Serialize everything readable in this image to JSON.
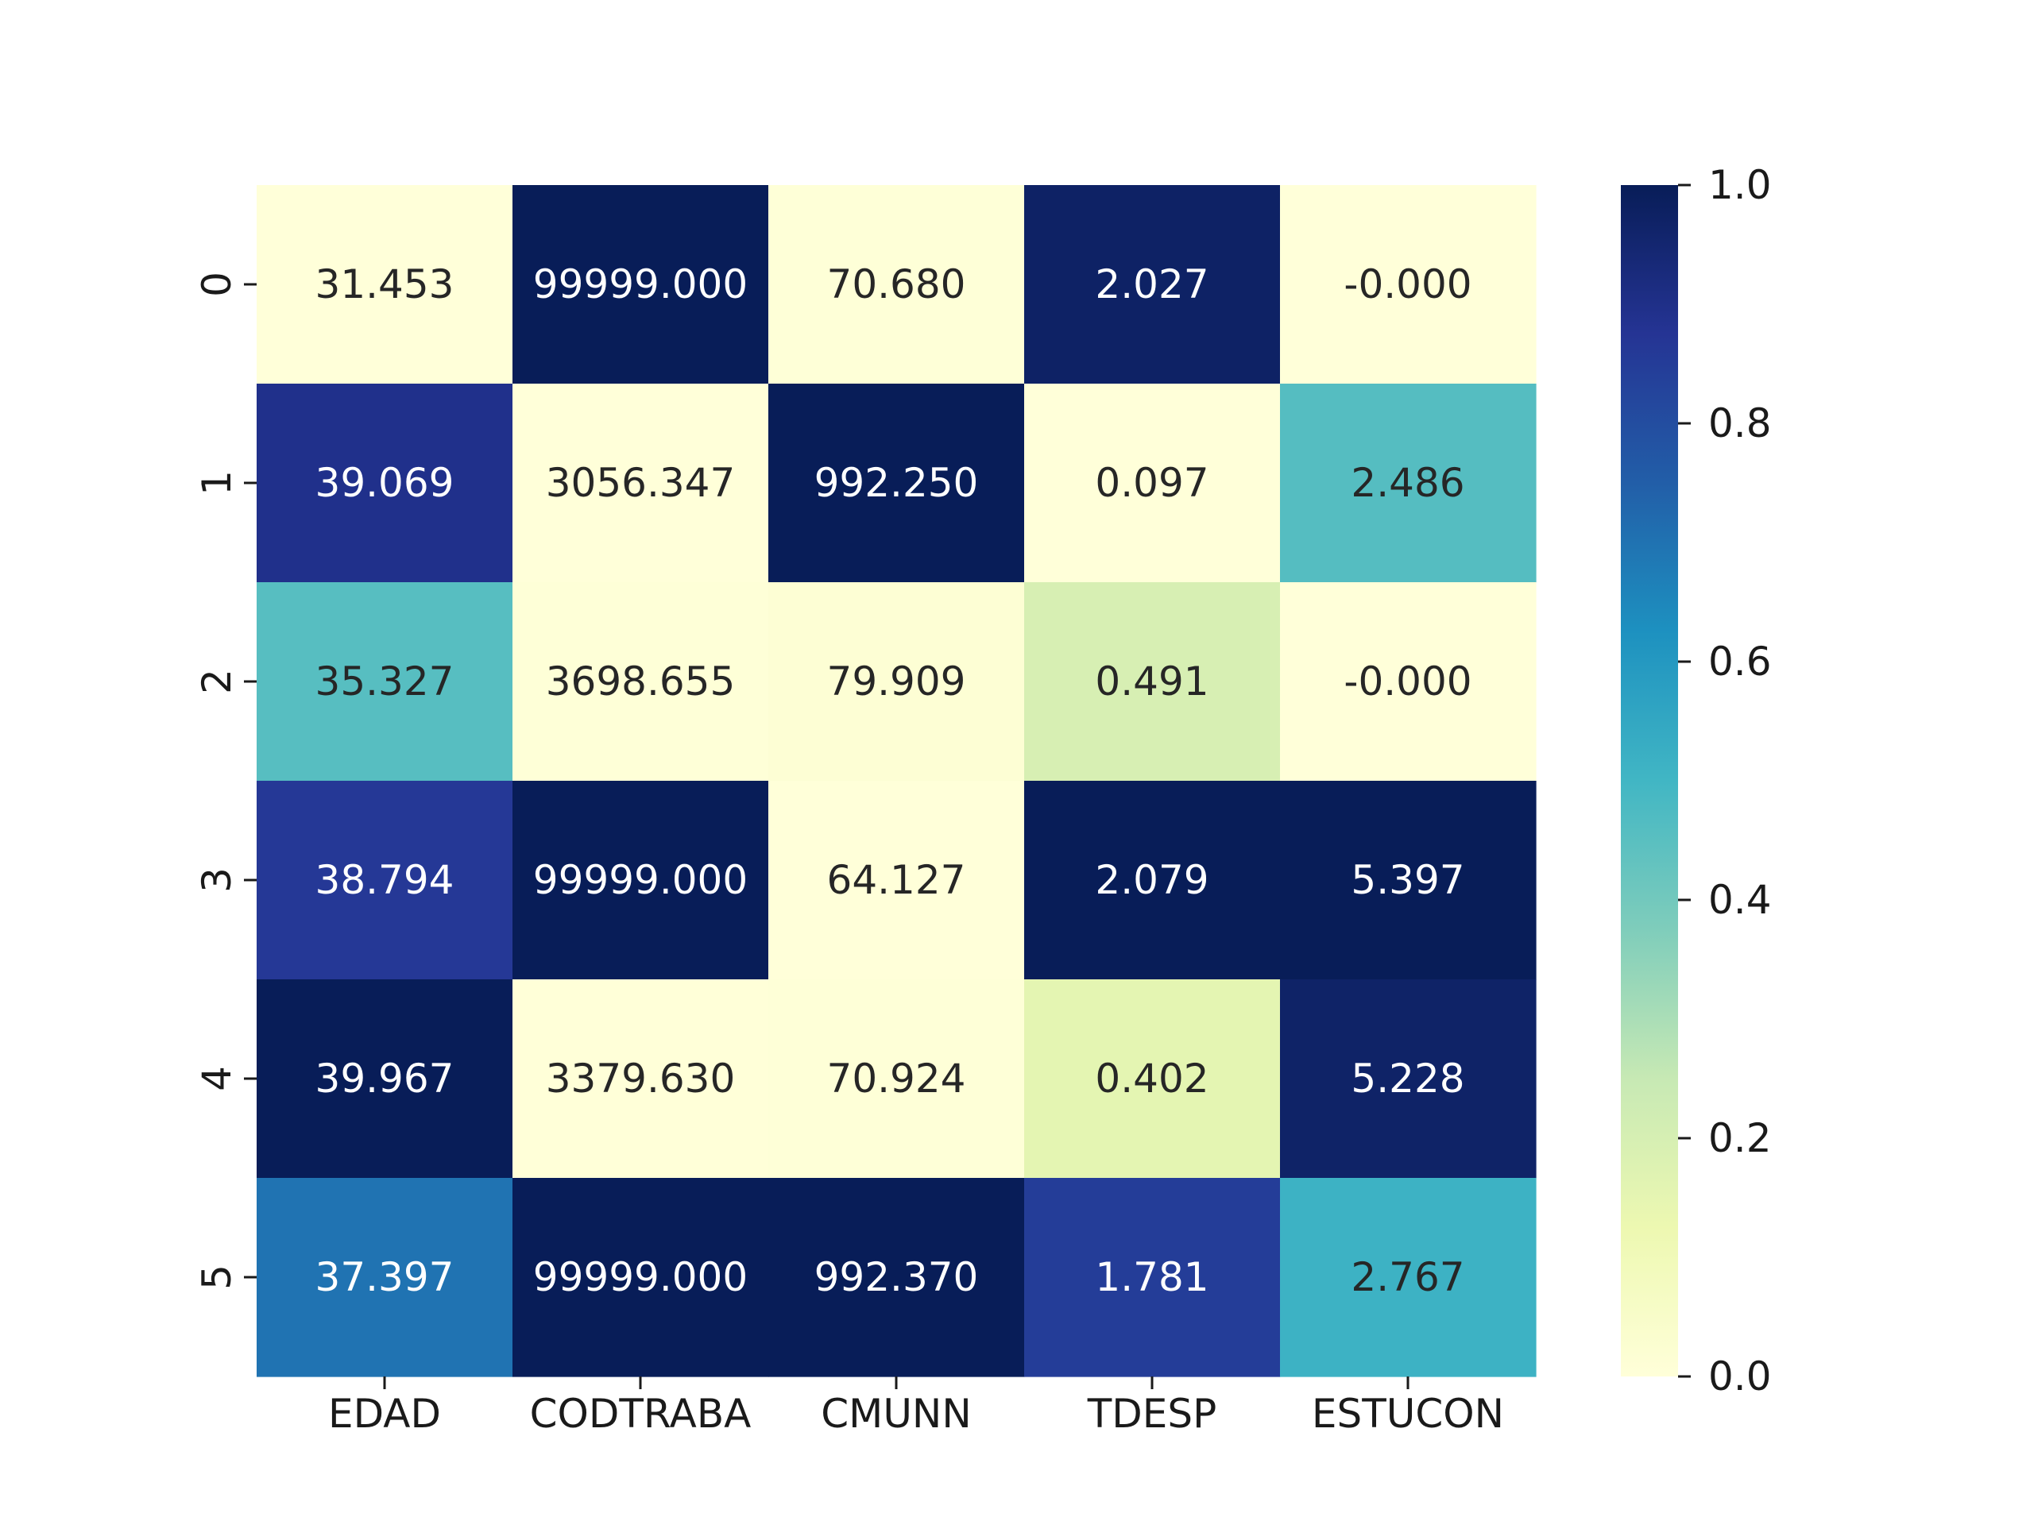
{
  "chart_data": {
    "type": "heatmap",
    "title": "",
    "xlabel": "",
    "ylabel": "",
    "columns": [
      "EDAD",
      "CODTRABA",
      "CMUNN",
      "TDESP",
      "ESTUCON"
    ],
    "rows": [
      "0",
      "1",
      "2",
      "3",
      "4",
      "5"
    ],
    "values": [
      [
        31.453,
        99999.0,
        70.68,
        2.027,
        -0.0
      ],
      [
        39.069,
        3056.347,
        992.25,
        0.097,
        2.486
      ],
      [
        35.327,
        3698.655,
        79.909,
        0.491,
        -0.0
      ],
      [
        38.794,
        99999.0,
        64.127,
        2.079,
        5.397
      ],
      [
        39.967,
        3379.63,
        70.924,
        0.402,
        5.228
      ],
      [
        37.397,
        99999.0,
        992.37,
        1.781,
        2.767
      ]
    ],
    "labels": [
      [
        "31.453",
        "99999.000",
        "70.680",
        "2.027",
        "-0.000"
      ],
      [
        "39.069",
        "3056.347",
        "992.250",
        "0.097",
        "2.486"
      ],
      [
        "35.327",
        "3698.655",
        "79.909",
        "0.491",
        "-0.000"
      ],
      [
        "38.794",
        "99999.000",
        "64.127",
        "2.079",
        "5.397"
      ],
      [
        "39.967",
        "3379.630",
        "70.924",
        "0.402",
        "5.228"
      ],
      [
        "37.397",
        "99999.000",
        "992.370",
        "1.781",
        "2.767"
      ]
    ],
    "normalization": "per-column min-max",
    "colormap": "YlGnBu",
    "colormap_stops": [
      "#ffffd9",
      "#edf8b1",
      "#c7e9b4",
      "#7fcdbb",
      "#41b6c4",
      "#1d91c0",
      "#225ea8",
      "#253494",
      "#081d58"
    ],
    "colorbar": {
      "range": [
        0.0,
        1.0
      ],
      "ticks": [
        0.0,
        0.2,
        0.4,
        0.6,
        0.8,
        1.0
      ],
      "tick_labels": [
        "0.0",
        "0.2",
        "0.4",
        "0.6",
        "0.8",
        "1.0"
      ]
    },
    "text_color_dark": "#262626",
    "text_color_light": "#ffffff"
  }
}
